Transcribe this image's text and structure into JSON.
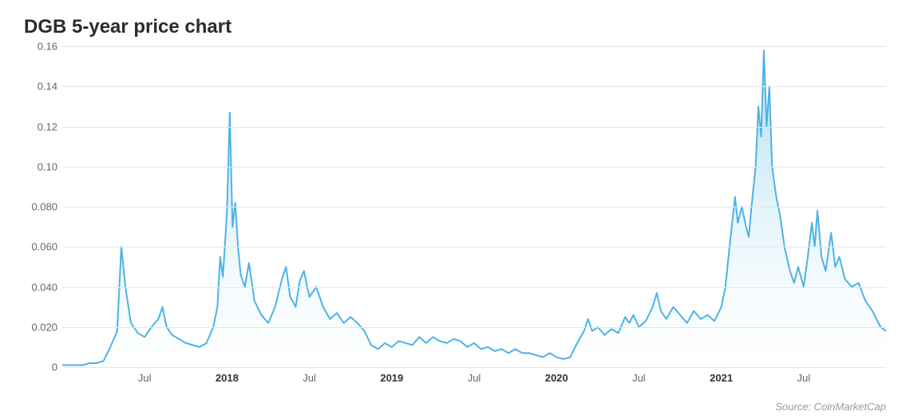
{
  "title": "DGB 5-year price chart",
  "source": "Source: CoinMarketCap",
  "chart": {
    "type": "area",
    "ylim": [
      0,
      0.16
    ],
    "yticks": [
      0,
      0.02,
      0.04,
      0.06,
      0.08,
      0.1,
      0.12,
      0.14,
      0.16
    ],
    "ytick_labels": [
      "0",
      "0.020",
      "0.040",
      "0.060",
      "0.080",
      "0.10",
      "0.12",
      "0.14",
      "0.16"
    ],
    "xlim": [
      0,
      60
    ],
    "xticks": [
      {
        "pos": 6,
        "label": "Jul",
        "bold": false
      },
      {
        "pos": 12,
        "label": "2018",
        "bold": true
      },
      {
        "pos": 18,
        "label": "Jul",
        "bold": false
      },
      {
        "pos": 24,
        "label": "2019",
        "bold": true
      },
      {
        "pos": 30,
        "label": "Jul",
        "bold": false
      },
      {
        "pos": 36,
        "label": "2020",
        "bold": true
      },
      {
        "pos": 42,
        "label": "Jul",
        "bold": false
      },
      {
        "pos": 48,
        "label": "2021",
        "bold": true
      },
      {
        "pos": 54,
        "label": "Jul",
        "bold": false
      }
    ],
    "line_color": "#4db3e6",
    "line_width": 2,
    "fill_top_color": "#9ed7f0",
    "fill_bottom_color": "#ffffff",
    "grid_color": "#e5e5e5",
    "background_color": "#ffffff",
    "title_fontsize": 24,
    "label_fontsize": 13,
    "label_color": "#666666",
    "series": [
      [
        0.0,
        0.001
      ],
      [
        0.5,
        0.001
      ],
      [
        1.0,
        0.001
      ],
      [
        1.5,
        0.001
      ],
      [
        2.0,
        0.002
      ],
      [
        2.5,
        0.002
      ],
      [
        3.0,
        0.003
      ],
      [
        3.5,
        0.01
      ],
      [
        4.0,
        0.018
      ],
      [
        4.3,
        0.06
      ],
      [
        4.6,
        0.04
      ],
      [
        5.0,
        0.022
      ],
      [
        5.5,
        0.017
      ],
      [
        6.0,
        0.015
      ],
      [
        6.5,
        0.02
      ],
      [
        7.0,
        0.024
      ],
      [
        7.3,
        0.03
      ],
      [
        7.6,
        0.02
      ],
      [
        8.0,
        0.016
      ],
      [
        8.5,
        0.014
      ],
      [
        9.0,
        0.012
      ],
      [
        9.5,
        0.011
      ],
      [
        10.0,
        0.01
      ],
      [
        10.5,
        0.012
      ],
      [
        11.0,
        0.02
      ],
      [
        11.3,
        0.03
      ],
      [
        11.5,
        0.055
      ],
      [
        11.7,
        0.045
      ],
      [
        12.0,
        0.078
      ],
      [
        12.2,
        0.127
      ],
      [
        12.4,
        0.07
      ],
      [
        12.6,
        0.082
      ],
      [
        12.8,
        0.06
      ],
      [
        13.0,
        0.046
      ],
      [
        13.3,
        0.04
      ],
      [
        13.6,
        0.052
      ],
      [
        14.0,
        0.033
      ],
      [
        14.5,
        0.026
      ],
      [
        15.0,
        0.022
      ],
      [
        15.5,
        0.03
      ],
      [
        16.0,
        0.044
      ],
      [
        16.3,
        0.05
      ],
      [
        16.6,
        0.035
      ],
      [
        17.0,
        0.03
      ],
      [
        17.3,
        0.043
      ],
      [
        17.6,
        0.048
      ],
      [
        18.0,
        0.035
      ],
      [
        18.5,
        0.04
      ],
      [
        19.0,
        0.03
      ],
      [
        19.5,
        0.024
      ],
      [
        20.0,
        0.027
      ],
      [
        20.5,
        0.022
      ],
      [
        21.0,
        0.025
      ],
      [
        21.5,
        0.022
      ],
      [
        22.0,
        0.018
      ],
      [
        22.5,
        0.011
      ],
      [
        23.0,
        0.009
      ],
      [
        23.5,
        0.012
      ],
      [
        24.0,
        0.01
      ],
      [
        24.5,
        0.013
      ],
      [
        25.0,
        0.012
      ],
      [
        25.5,
        0.011
      ],
      [
        26.0,
        0.015
      ],
      [
        26.5,
        0.012
      ],
      [
        27.0,
        0.015
      ],
      [
        27.5,
        0.013
      ],
      [
        28.0,
        0.012
      ],
      [
        28.5,
        0.014
      ],
      [
        29.0,
        0.013
      ],
      [
        29.5,
        0.01
      ],
      [
        30.0,
        0.012
      ],
      [
        30.5,
        0.009
      ],
      [
        31.0,
        0.01
      ],
      [
        31.5,
        0.008
      ],
      [
        32.0,
        0.009
      ],
      [
        32.5,
        0.007
      ],
      [
        33.0,
        0.009
      ],
      [
        33.5,
        0.007
      ],
      [
        34.0,
        0.007
      ],
      [
        34.5,
        0.006
      ],
      [
        35.0,
        0.005
      ],
      [
        35.5,
        0.007
      ],
      [
        36.0,
        0.005
      ],
      [
        36.5,
        0.004
      ],
      [
        37.0,
        0.005
      ],
      [
        37.5,
        0.012
      ],
      [
        38.0,
        0.018
      ],
      [
        38.3,
        0.024
      ],
      [
        38.6,
        0.018
      ],
      [
        39.0,
        0.02
      ],
      [
        39.5,
        0.016
      ],
      [
        40.0,
        0.019
      ],
      [
        40.5,
        0.017
      ],
      [
        41.0,
        0.025
      ],
      [
        41.3,
        0.022
      ],
      [
        41.6,
        0.026
      ],
      [
        42.0,
        0.02
      ],
      [
        42.5,
        0.023
      ],
      [
        43.0,
        0.03
      ],
      [
        43.3,
        0.037
      ],
      [
        43.6,
        0.028
      ],
      [
        44.0,
        0.024
      ],
      [
        44.5,
        0.03
      ],
      [
        45.0,
        0.026
      ],
      [
        45.5,
        0.022
      ],
      [
        46.0,
        0.028
      ],
      [
        46.5,
        0.024
      ],
      [
        47.0,
        0.026
      ],
      [
        47.5,
        0.023
      ],
      [
        48.0,
        0.03
      ],
      [
        48.3,
        0.04
      ],
      [
        48.6,
        0.06
      ],
      [
        49.0,
        0.085
      ],
      [
        49.2,
        0.072
      ],
      [
        49.5,
        0.08
      ],
      [
        49.8,
        0.07
      ],
      [
        50.0,
        0.065
      ],
      [
        50.2,
        0.08
      ],
      [
        50.5,
        0.1
      ],
      [
        50.7,
        0.13
      ],
      [
        50.9,
        0.115
      ],
      [
        51.1,
        0.158
      ],
      [
        51.3,
        0.12
      ],
      [
        51.5,
        0.14
      ],
      [
        51.7,
        0.1
      ],
      [
        52.0,
        0.085
      ],
      [
        52.3,
        0.075
      ],
      [
        52.6,
        0.06
      ],
      [
        53.0,
        0.048
      ],
      [
        53.3,
        0.042
      ],
      [
        53.6,
        0.05
      ],
      [
        54.0,
        0.04
      ],
      [
        54.3,
        0.055
      ],
      [
        54.6,
        0.072
      ],
      [
        54.8,
        0.06
      ],
      [
        55.0,
        0.078
      ],
      [
        55.3,
        0.055
      ],
      [
        55.6,
        0.048
      ],
      [
        56.0,
        0.067
      ],
      [
        56.3,
        0.05
      ],
      [
        56.6,
        0.055
      ],
      [
        57.0,
        0.044
      ],
      [
        57.5,
        0.04
      ],
      [
        58.0,
        0.042
      ],
      [
        58.5,
        0.033
      ],
      [
        59.0,
        0.028
      ],
      [
        59.3,
        0.024
      ],
      [
        59.6,
        0.02
      ],
      [
        60.0,
        0.018
      ]
    ]
  }
}
